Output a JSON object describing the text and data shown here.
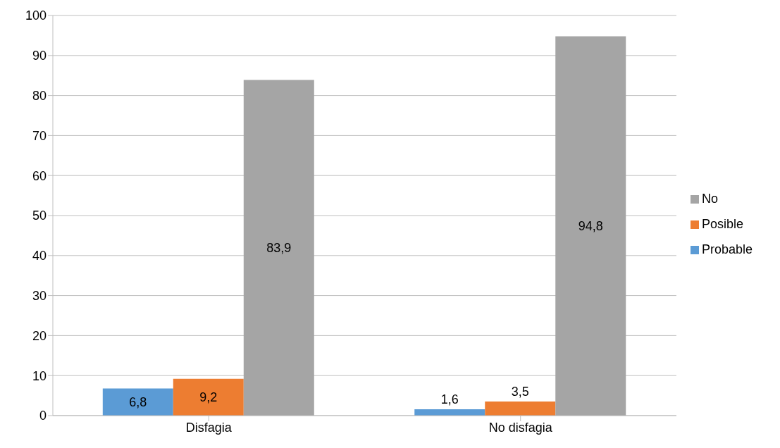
{
  "chart_data": {
    "type": "bar",
    "categories": [
      "Disfagia",
      "No disfagia"
    ],
    "series": [
      {
        "name": "Probable",
        "color": "#5b9bd5",
        "values": [
          6.8,
          1.6
        ],
        "value_labels": [
          "6,8",
          "1,6"
        ]
      },
      {
        "name": "Posible",
        "color": "#ed7d31",
        "values": [
          9.2,
          3.5
        ],
        "value_labels": [
          "9,2",
          "3,5"
        ]
      },
      {
        "name": "No",
        "color": "#a5a5a5",
        "values": [
          83.9,
          94.8
        ],
        "value_labels": [
          "83,9",
          "94,8"
        ]
      }
    ],
    "ylim": [
      0,
      100
    ],
    "yticks": [
      0,
      10,
      20,
      30,
      40,
      50,
      60,
      70,
      80,
      90,
      100
    ],
    "grid": "y",
    "legend": "right"
  }
}
